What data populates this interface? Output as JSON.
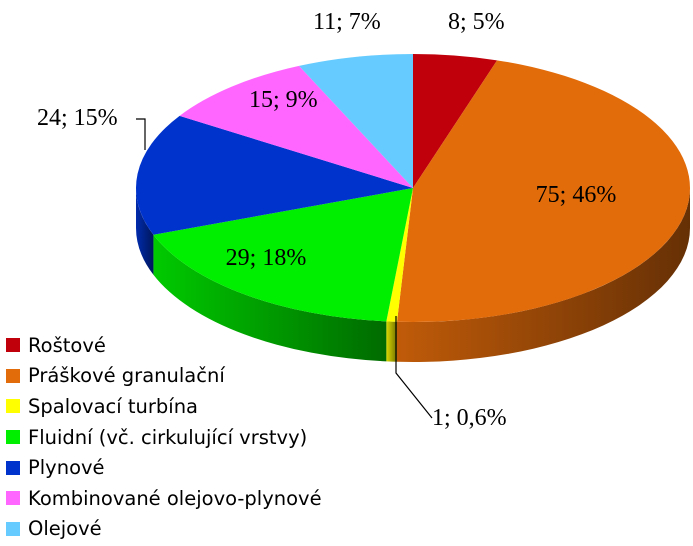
{
  "chart_data": {
    "type": "pie",
    "style": "3d",
    "legend_position": "bottom-left",
    "slices": [
      {
        "name": "Roštové",
        "value": 8,
        "percent_label": "5%",
        "label": "8; 5%",
        "color": "#c0000b"
      },
      {
        "name": "Práškové granulační",
        "value": 75,
        "percent_label": "46%",
        "label": "75; 46%",
        "color": "#e26b0a"
      },
      {
        "name": "Spalovací turbína",
        "value": 1,
        "percent_label": "0,6%",
        "label": "1; 0,6%",
        "color": "#ffff00"
      },
      {
        "name": "Fluidní (vč. cirkulující vrstvy)",
        "value": 29,
        "percent_label": "18%",
        "label": "29; 18%",
        "color": "#00ee00"
      },
      {
        "name": "Plynové",
        "value": 24,
        "percent_label": "15%",
        "label": "24; 15%",
        "color": "#0033cc"
      },
      {
        "name": "Kombinované olejovo-plynové",
        "value": 15,
        "percent_label": "9%",
        "label": "15; 9%",
        "color": "#ff66ff"
      },
      {
        "name": "Olejové",
        "value": 11,
        "percent_label": "7%",
        "label": "11; 7%",
        "color": "#66ccff"
      }
    ]
  }
}
